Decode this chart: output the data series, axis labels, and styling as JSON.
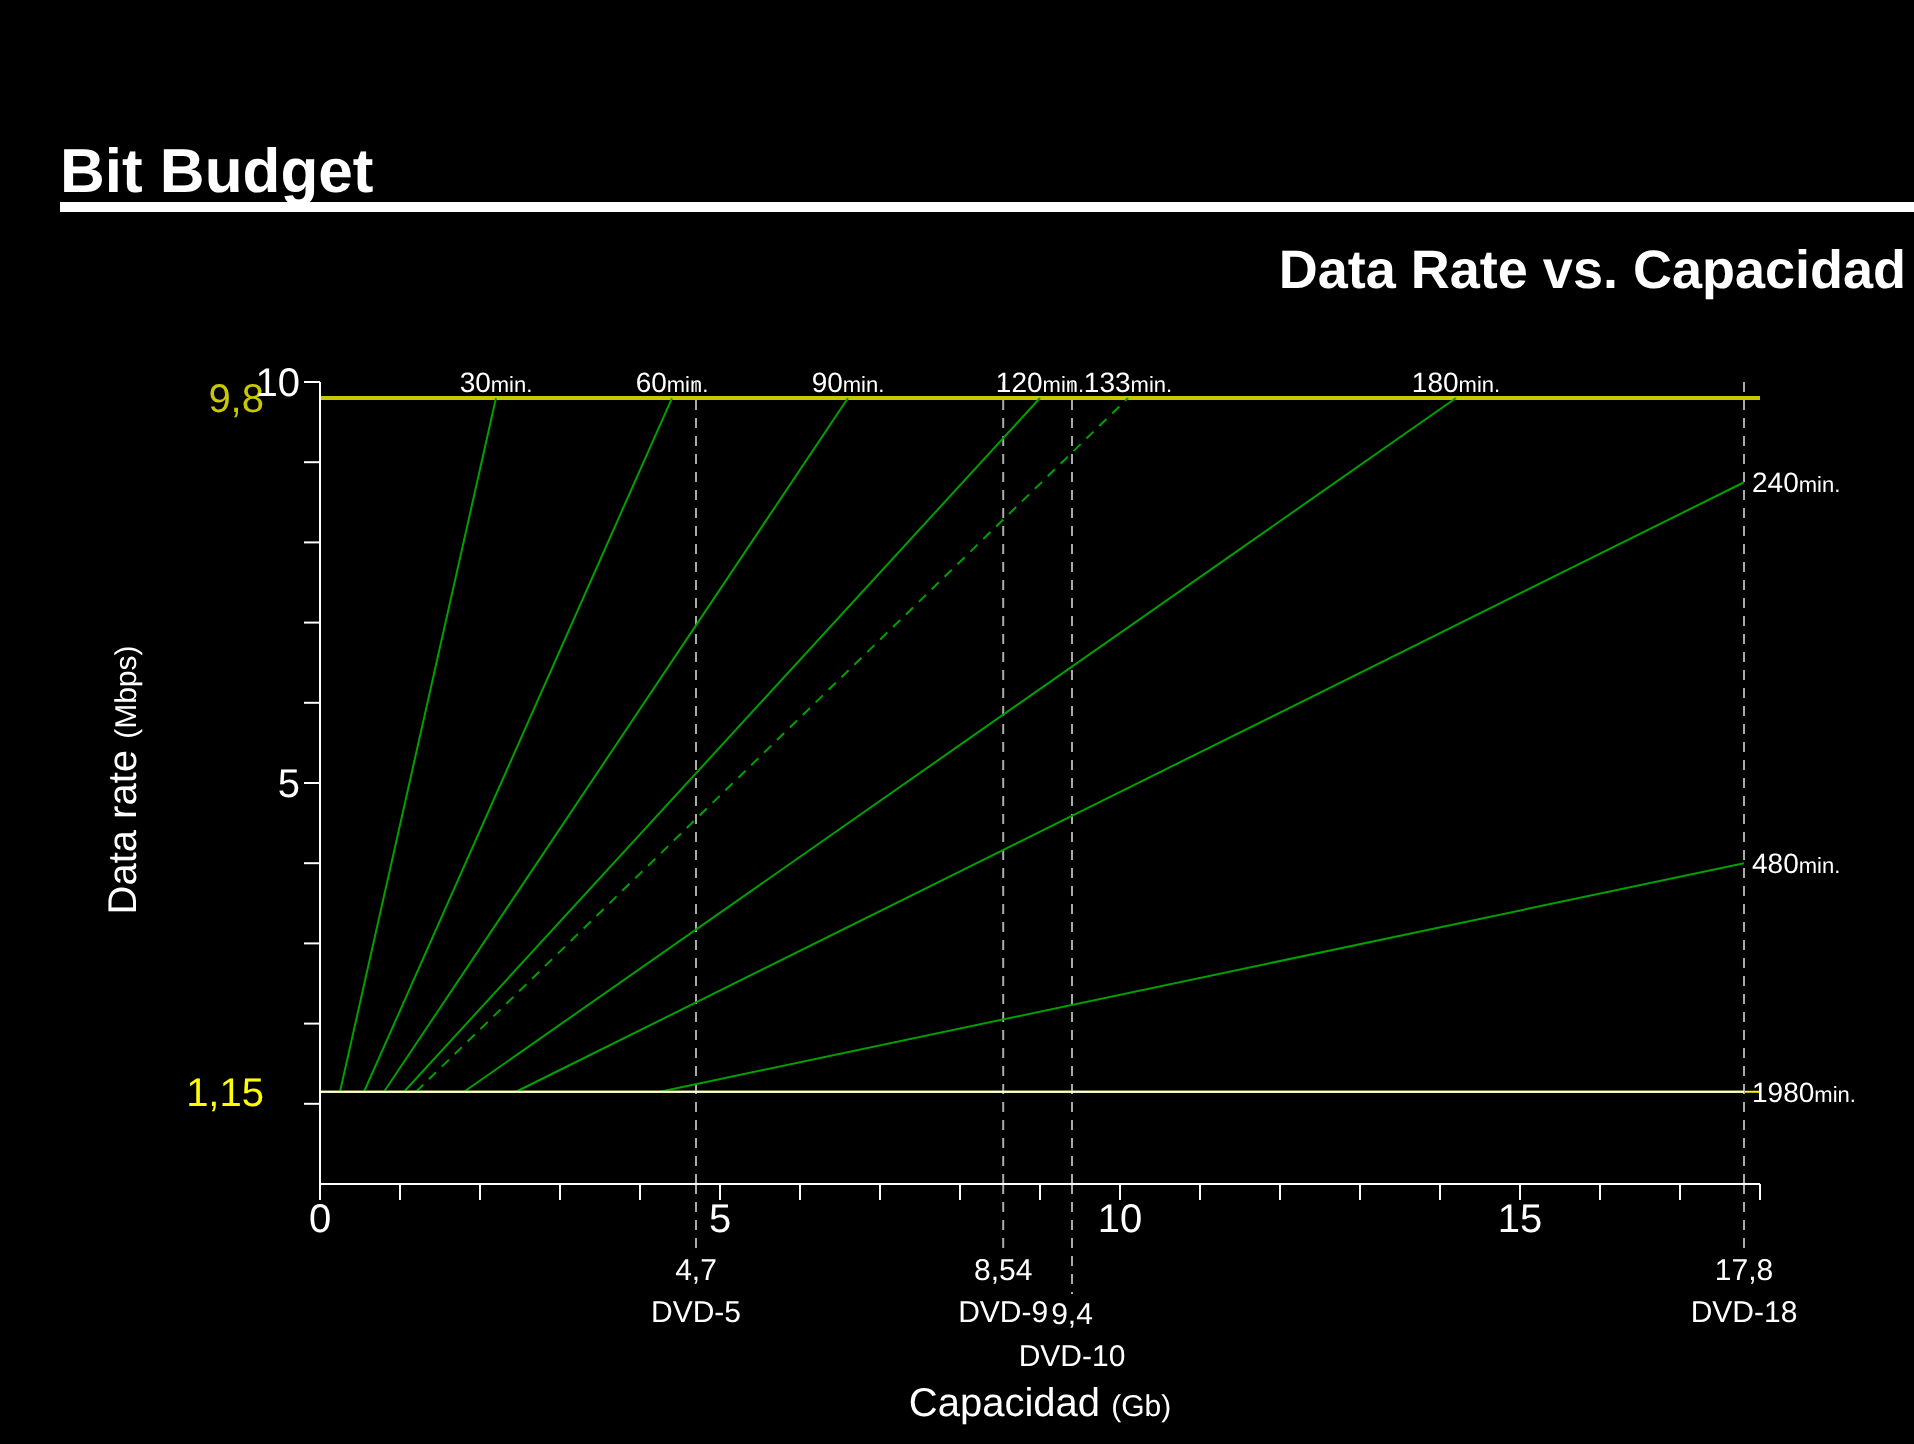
{
  "chart_data": {
    "type": "line",
    "title": "Bit Budget",
    "subtitle": "Data Rate vs. Capacidad",
    "xlabel": "Capacidad (Gb)",
    "ylabel": "Data rate (Mbps)",
    "xlim": [
      0,
      18
    ],
    "ylim": [
      0,
      10
    ],
    "xticks": [
      {
        "value": 0,
        "label": "0"
      },
      {
        "value": 1,
        "label": null
      },
      {
        "value": 2,
        "label": null
      },
      {
        "value": 3,
        "label": null
      },
      {
        "value": 4,
        "label": null
      },
      5,
      {
        "value": 6,
        "label": null
      },
      {
        "value": 7,
        "label": null
      },
      {
        "value": 8,
        "label": null
      },
      {
        "value": 9,
        "label": null
      },
      10,
      {
        "value": 11,
        "label": null
      },
      {
        "value": 12,
        "label": null
      },
      {
        "value": 13,
        "label": null
      },
      {
        "value": 14,
        "label": null
      },
      15,
      {
        "value": 16,
        "label": null
      },
      {
        "value": 17,
        "label": null
      },
      {
        "value": 18,
        "label": null
      }
    ],
    "yticks": [
      {
        "value": 1,
        "label": null
      },
      {
        "value": 2,
        "label": null
      },
      {
        "value": 3,
        "label": null
      },
      {
        "value": 4,
        "label": null
      },
      5,
      {
        "value": 6,
        "label": null
      },
      {
        "value": 7,
        "label": null
      },
      {
        "value": 8,
        "label": null
      },
      {
        "value": 9,
        "label": null
      },
      10
    ],
    "grid": false,
    "legend": false,
    "marker": "none",
    "line_style": "solid",
    "series": [
      {
        "name": "30min.",
        "color": "#00a000",
        "x": [
          0.25,
          2.2
        ],
        "values": [
          1.15,
          9.8
        ]
      },
      {
        "name": "60min.",
        "color": "#00a000",
        "x": [
          0.55,
          4.4
        ],
        "values": [
          1.15,
          9.8
        ]
      },
      {
        "name": "90min.",
        "color": "#00a000",
        "x": [
          0.8,
          6.6
        ],
        "values": [
          1.15,
          9.8
        ]
      },
      {
        "name": "120min.",
        "color": "#00a000",
        "x": [
          1.05,
          9.0
        ],
        "values": [
          1.15,
          9.8
        ]
      },
      {
        "name": "133min.",
        "color": "#00a000",
        "line_style": "dashed",
        "x": [
          1.2,
          10.1
        ],
        "values": [
          1.15,
          9.8
        ]
      },
      {
        "name": "180min.",
        "color": "#00a000",
        "x": [
          1.8,
          14.2
        ],
        "values": [
          1.15,
          9.8
        ]
      },
      {
        "name": "240min.",
        "color": "#00a000",
        "x": [
          2.45,
          17.8
        ],
        "values": [
          1.15,
          8.75
        ]
      },
      {
        "name": "480min.",
        "color": "#00a000",
        "x": [
          4.25,
          17.8
        ],
        "values": [
          1.15,
          4.0
        ]
      },
      {
        "name": "1980min.",
        "color": "#ffffff",
        "x": [
          0,
          17.8
        ],
        "values": [
          1.15,
          1.15
        ]
      }
    ],
    "ref_lines": [
      {
        "axis": "y",
        "value": 9.8,
        "label": "9,8",
        "color": "#c8c800"
      },
      {
        "axis": "y",
        "value": 1.15,
        "label": "1,15",
        "color": "#ffff00"
      },
      {
        "axis": "x",
        "value": 4.7,
        "label": "4,7 DVD-5",
        "color": "#aaaaaa",
        "line_style": "dashed"
      },
      {
        "axis": "x",
        "value": 8.54,
        "label": "8,54 DVD-9",
        "color": "#aaaaaa",
        "line_style": "dashed"
      },
      {
        "axis": "x",
        "value": 9.4,
        "label": "9,4 DVD-10",
        "color": "#aaaaaa",
        "line_style": "dashed"
      },
      {
        "axis": "x",
        "value": 17.8,
        "label": "17,8 DVD-18",
        "color": "#aaaaaa",
        "line_style": "dashed"
      }
    ]
  }
}
